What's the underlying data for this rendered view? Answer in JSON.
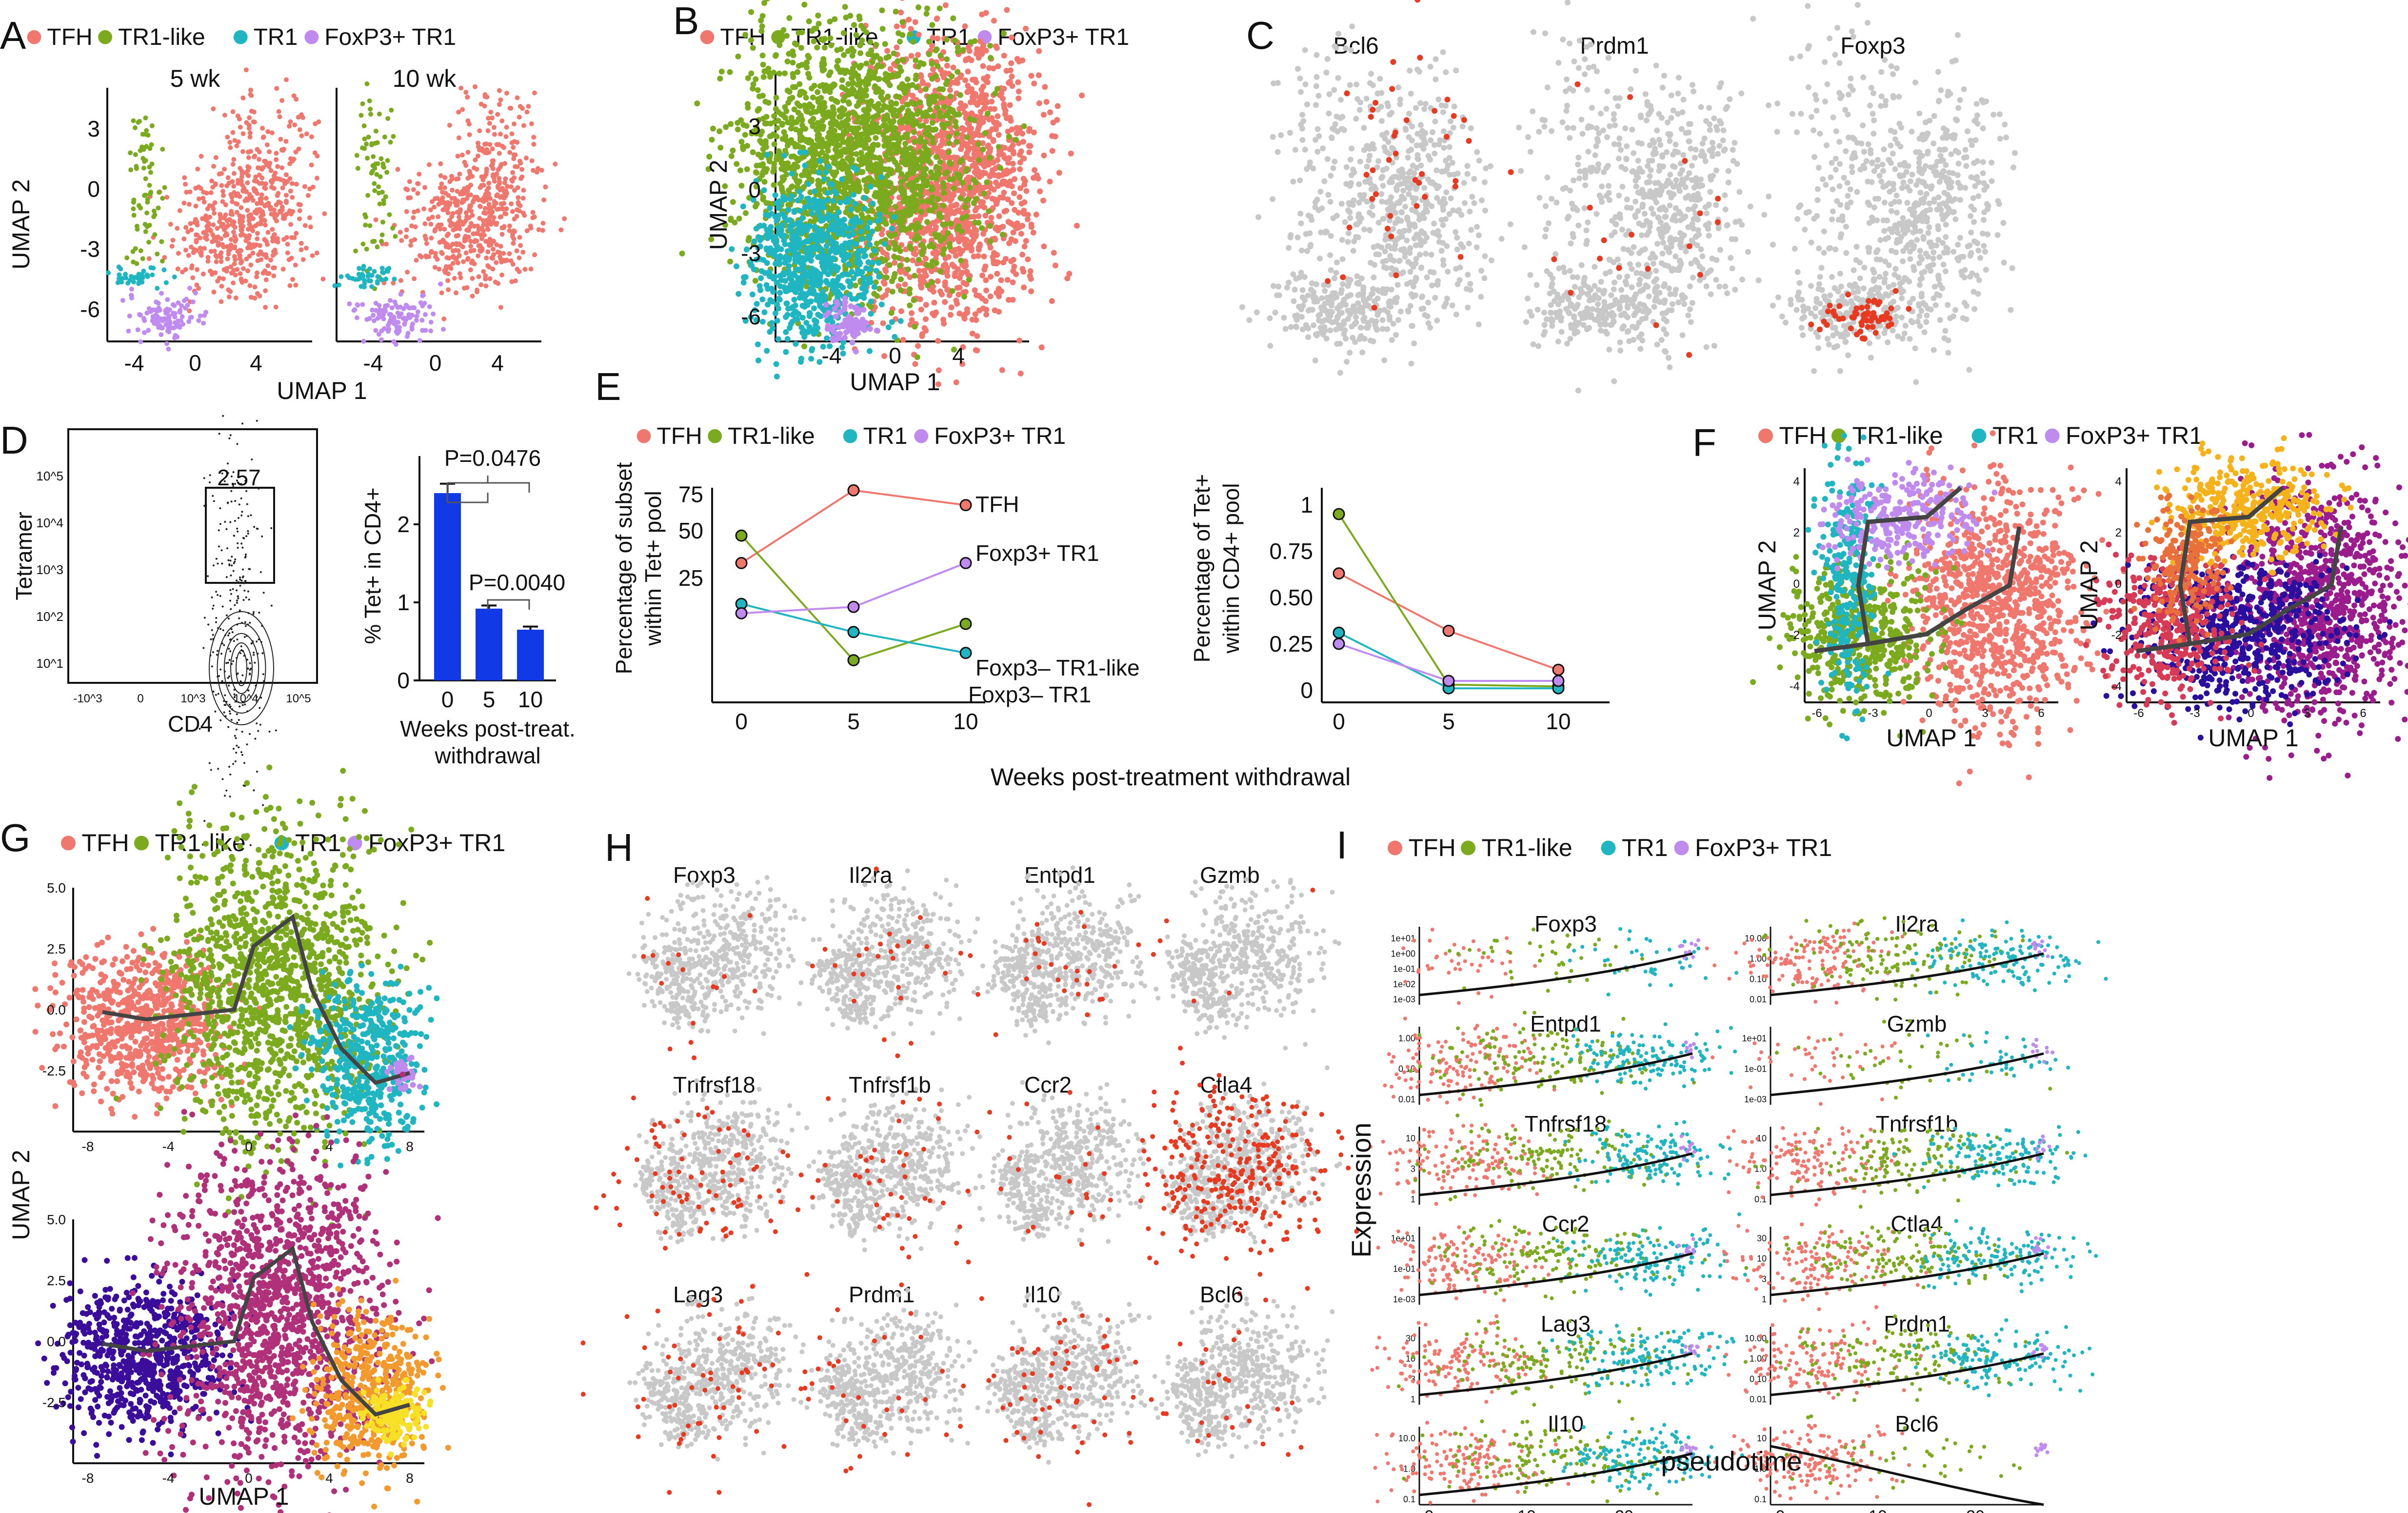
{
  "colors": {
    "TFH": "#F0776D",
    "TR1-like": "#7BAA1E",
    "TR1": "#1FB6C2",
    "FoxP3+ TR1": "#C08BEF",
    "grey": "#C8C8C8",
    "bar": "#1239E6",
    "expr": "#E83A20"
  },
  "legend": [
    "TFH",
    "TR1-like",
    "TR1",
    "FoxP3+ TR1"
  ],
  "panels": {
    "A": {
      "letter": "A",
      "subtitles": [
        "5 wk",
        "10 wk"
      ],
      "xlabel": "UMAP 1",
      "ylabel": "UMAP 2",
      "xticks": [
        "-4",
        "0",
        "4"
      ],
      "yticks": [
        "3",
        "0",
        "-3",
        "-6"
      ]
    },
    "B": {
      "letter": "B",
      "xlabel": "UMAP 1",
      "ylabel": "UMAP 2",
      "xticks": [
        "-4",
        "0",
        "4"
      ],
      "yticks": [
        "3",
        "0",
        "-3",
        "-6"
      ]
    },
    "C": {
      "letter": "C",
      "genes": [
        "Bcl6",
        "Prdm1",
        "Foxp3"
      ]
    },
    "D": {
      "letter": "D",
      "gate_value": "2,57",
      "xlabel": "CD4",
      "ylabel": "Tetramer",
      "flow_yticks": [
        "10^5",
        "10^4",
        "10^3",
        "10^2",
        "10^1"
      ],
      "flow_xticks": [
        "-10^3",
        "0",
        "10^3",
        "10^4",
        "10^5"
      ]
    },
    "E": {
      "letter": "E",
      "xlabel": "Weeks post-treatment withdrawal",
      "left_ylabel_1": "Percentage of subset",
      "left_ylabel_2": "within Tet+ pool",
      "right_ylabel_1": "Percentage of Tet+",
      "right_ylabel_2": "within CD4+ pool",
      "left_yticks": [
        "75",
        "50",
        "25"
      ],
      "right_yticks": [
        "1",
        "0.75",
        "0.50",
        "0.25",
        "0"
      ],
      "labels": [
        "TFH",
        "Foxp3+ TR1",
        "Foxp3– TR1-like",
        "Foxp3– TR1"
      ]
    },
    "F": {
      "letter": "F",
      "xlabel": "UMAP 1",
      "ylabel": "UMAP 2",
      "xticks": [
        "-6",
        "-3",
        "0",
        "3",
        "6"
      ],
      "yticks": [
        "4",
        "2",
        "0",
        "-2",
        "-4"
      ]
    },
    "G": {
      "letter": "G",
      "xlabel": "UMAP 1",
      "ylabel": "UMAP 2",
      "xticks": [
        "-8",
        "-4",
        "0",
        "4",
        "8"
      ],
      "yticks": [
        "5.0",
        "2.5",
        "0.0",
        "-2.5"
      ]
    },
    "H": {
      "letter": "H",
      "genes": [
        "Foxp3",
        "Il2ra",
        "Entpd1",
        "Gzmb",
        "Tnfrsf18",
        "Tnfrsf1b",
        "Ccr2",
        "Ctla4",
        "Lag3",
        "Prdm1",
        "Il10",
        "Bcl6"
      ]
    },
    "I": {
      "letter": "I",
      "xlabel": "pseudotime",
      "ylabel": "Expression",
      "xticks": [
        "0",
        "10",
        "20"
      ],
      "genes": [
        {
          "name": "Foxp3",
          "yticks": [
            "1e+01",
            "1e+00",
            "1e-01",
            "1e-02",
            "1e-03"
          ]
        },
        {
          "name": "Il2ra",
          "yticks": [
            "10.00",
            "1.00",
            "0.10",
            "0.01"
          ]
        },
        {
          "name": "Entpd1",
          "yticks": [
            "1.00",
            "0.10",
            "0.01"
          ]
        },
        {
          "name": "Gzmb",
          "yticks": [
            "1e+01",
            "1e-01",
            "1e-03"
          ]
        },
        {
          "name": "Tnfrsf18",
          "yticks": [
            "10",
            "3",
            "1"
          ]
        },
        {
          "name": "Tnfrsf1b",
          "yticks": [
            "10",
            "1.0",
            "0.1"
          ]
        },
        {
          "name": "Ccr2",
          "yticks": [
            "1e+01",
            "1e-01",
            "1e-03"
          ]
        },
        {
          "name": "Ctla4",
          "yticks": [
            "30",
            "10",
            "3",
            "1"
          ]
        },
        {
          "name": "Lag3",
          "yticks": [
            "30",
            "10",
            "3",
            "1"
          ]
        },
        {
          "name": "Prdm1",
          "yticks": [
            "10.00",
            "1.00",
            "0.10",
            "0.01"
          ]
        },
        {
          "name": "Il10",
          "yticks": [
            "10.0",
            "1.0",
            "0.1"
          ]
        },
        {
          "name": "Bcl6",
          "yticks": [
            "10",
            "1.0",
            "0.1"
          ]
        }
      ]
    }
  },
  "chart_data": [
    {
      "type": "bar",
      "panel": "D",
      "categories": [
        "0",
        "5",
        "10"
      ],
      "values": [
        2.4,
        0.92,
        0.65
      ],
      "errors": [
        0.12,
        0.04,
        0.04
      ],
      "ylabel": "% Tet+ in CD4+",
      "xlabel_line1": "Weeks post-treat.",
      "xlabel_line2": "withdrawal",
      "ylim": [
        0,
        3
      ],
      "yticks": [
        "0",
        "1",
        "2"
      ],
      "pvalues": [
        "P=0.0476",
        "P=0.0040"
      ]
    },
    {
      "type": "line",
      "panel": "E-left",
      "x": [
        0,
        5,
        10
      ],
      "series": [
        {
          "name": "TFH",
          "values": [
            32,
            78,
            67
          ]
        },
        {
          "name": "TR1-like",
          "values": [
            47,
            2,
            9
          ]
        },
        {
          "name": "TR1",
          "values": [
            15,
            7,
            3
          ]
        },
        {
          "name": "FoxP3+ TR1",
          "values": [
            12,
            14,
            32
          ]
        }
      ]
    },
    {
      "type": "line",
      "panel": "E-right",
      "x": [
        0,
        5,
        10
      ],
      "ylim": [
        0,
        1
      ],
      "series": [
        {
          "name": "TFH",
          "values": [
            0.63,
            0.32,
            0.11
          ]
        },
        {
          "name": "TR1-like",
          "values": [
            0.95,
            0.03,
            0.02
          ]
        },
        {
          "name": "TR1",
          "values": [
            0.31,
            0.01,
            0.01
          ]
        },
        {
          "name": "FoxP3+ TR1",
          "values": [
            0.25,
            0.05,
            0.05
          ]
        }
      ]
    }
  ]
}
